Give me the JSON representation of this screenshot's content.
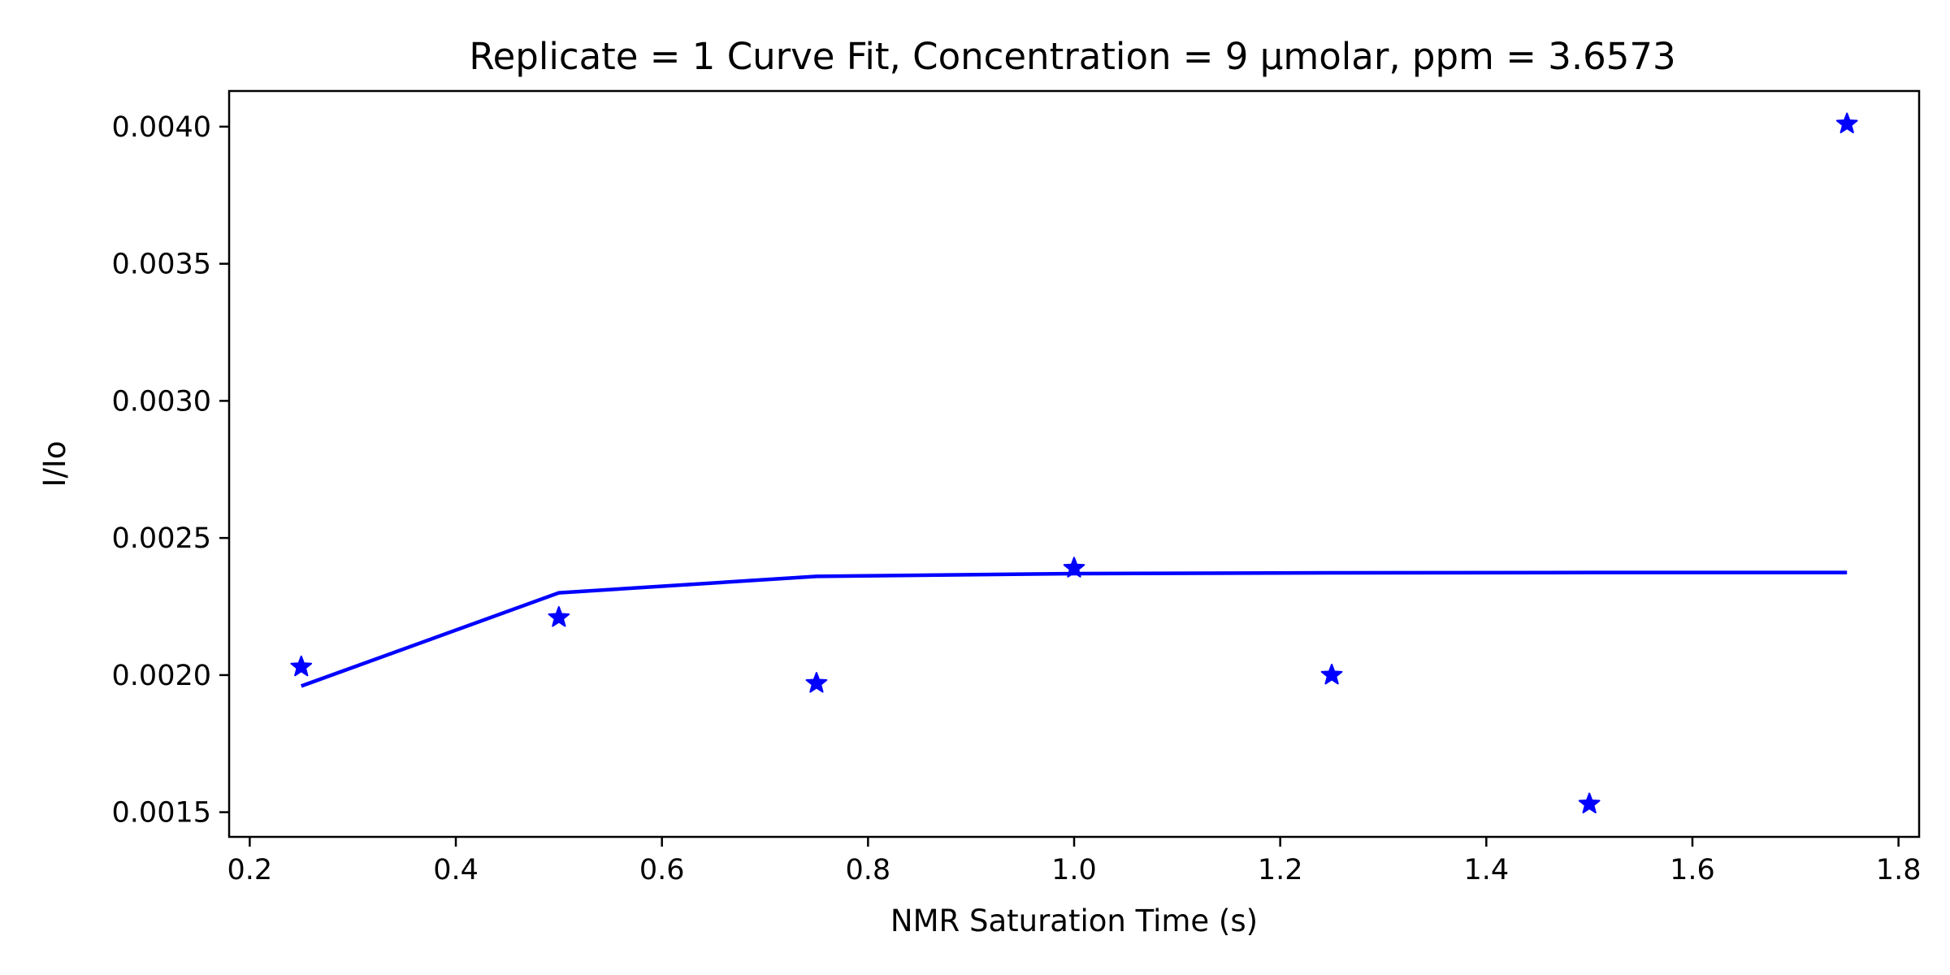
{
  "chart_data": {
    "type": "line",
    "title": "Replicate = 1 Curve Fit, Concentration = 9 µmolar, ppm = 3.6573",
    "xlabel": "NMR Saturation Time (s)",
    "ylabel": "I/Io",
    "xlim": [
      0.18,
      1.82
    ],
    "ylim": [
      0.00141,
      0.00413
    ],
    "xticks": [
      0.2,
      0.4,
      0.6,
      0.8,
      1.0,
      1.2,
      1.4,
      1.6,
      1.8
    ],
    "xtick_labels": [
      "0.2",
      "0.4",
      "0.6",
      "0.8",
      "1.0",
      "1.2",
      "1.4",
      "1.6",
      "1.8"
    ],
    "yticks": [
      0.0015,
      0.002,
      0.0025,
      0.003,
      0.0035,
      0.004
    ],
    "ytick_labels": [
      "0.0015",
      "0.0020",
      "0.0025",
      "0.0030",
      "0.0035",
      "0.0040"
    ],
    "grid": false,
    "color": "#0000ff",
    "series": [
      {
        "kind": "scatter",
        "marker": "star",
        "x": [
          0.25,
          0.5,
          0.75,
          1.0,
          1.25,
          1.5,
          1.75
        ],
        "y": [
          0.00203,
          0.00221,
          0.00197,
          0.00239,
          0.002,
          0.00153,
          0.00401
        ]
      },
      {
        "kind": "line",
        "x": [
          0.25,
          0.5,
          0.75,
          1.0,
          1.25,
          1.5,
          1.75
        ],
        "y": [
          0.00196,
          0.0023,
          0.00236,
          0.00237,
          0.002373,
          0.002374,
          0.002374
        ]
      }
    ]
  }
}
